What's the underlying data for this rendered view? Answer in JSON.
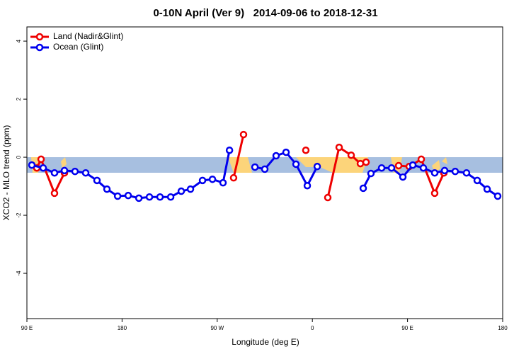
{
  "chart_data": {
    "type": "line",
    "title": "0-10N April (Ver 9)   2014-09-06 to 2018-12-31",
    "x_label": "Longitude (deg E)",
    "y_label": "XCO2 - MLO trend (ppm)",
    "xlim": [
      90,
      540
    ],
    "ylim": [
      -5.56,
      4.49
    ],
    "xticks": [
      {
        "value": 90,
        "label": "90 E"
      },
      180,
      {
        "value": 270,
        "label": "90 W"
      },
      {
        "value": 360,
        "label": "0"
      },
      {
        "value": 450,
        "label": "90 E"
      },
      {
        "value": 540,
        "label": "180"
      }
    ],
    "yticks": [
      -4,
      -2,
      0,
      2,
      4
    ],
    "legend": "top-left",
    "series": [
      {
        "name": "Land (Nadir&Glint)",
        "color": "#ee0000",
        "x": [
          99.4,
          103.4,
          116.1,
          125.5,
          null,
          285.5,
          294.9,
          null,
          353.8,
          null,
          374.6,
          385.3,
          396.7,
          405.4,
          410.8,
          null,
          441.6,
          451.6,
          463,
          475.7,
          484.4
        ],
        "values": [
          -0.37,
          -0.07,
          -1.24,
          -0.54,
          null,
          -0.71,
          0.78,
          null,
          0.24,
          null,
          -1.39,
          0.34,
          0.07,
          -0.22,
          -0.17,
          null,
          -0.29,
          -0.32,
          -0.07,
          -1.24,
          -0.54
        ]
      },
      {
        "name": "Ocean (Glint)",
        "color": "#0000ee",
        "x": [
          94.7,
          105.4,
          116.1,
          125.5,
          135.5,
          145.6,
          156.3,
          165.7,
          175.8,
          185.8,
          195.9,
          205.9,
          215.9,
          226,
          236,
          244.7,
          256.1,
          265.5,
          275.5,
          281.6,
          null,
          305.7,
          315,
          325.7,
          335.1,
          344.5,
          355.2,
          364.6,
          null,
          408.1,
          415.4,
          425.5,
          434.9,
          445.6,
          455,
          465,
          475.7,
          485.1,
          495.1,
          505.8,
          515.9,
          525.3,
          535.3
        ],
        "values": [
          -0.27,
          -0.37,
          -0.54,
          -0.46,
          -0.49,
          -0.54,
          -0.8,
          -1.1,
          -1.34,
          -1.32,
          -1.41,
          -1.37,
          -1.37,
          -1.37,
          -1.17,
          -1.1,
          -0.8,
          -0.76,
          -0.88,
          0.24,
          null,
          -0.34,
          -0.41,
          0.05,
          0.17,
          -0.24,
          -0.98,
          -0.32,
          null,
          -1.07,
          -0.56,
          -0.37,
          -0.37,
          -0.68,
          -0.27,
          -0.37,
          -0.54,
          -0.46,
          -0.49,
          -0.54,
          -0.8,
          -1.1,
          -1.34
        ]
      }
    ]
  }
}
